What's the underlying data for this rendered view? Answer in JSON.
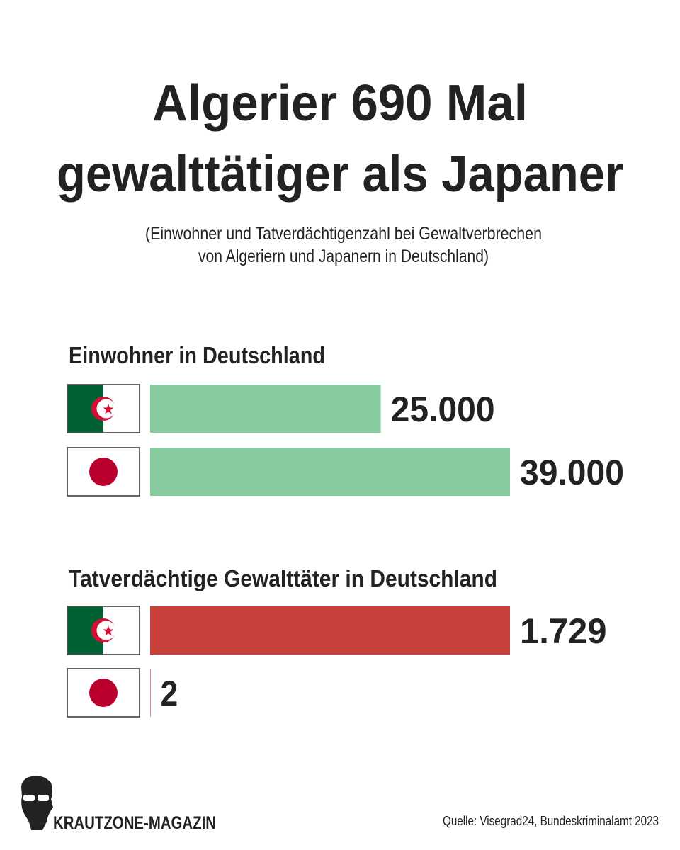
{
  "header": {
    "title": [
      "Algerier 690 Mal",
      "gewalttätiger als Japaner"
    ],
    "subtitle": [
      "(Einwohner und Tatverdächtigenzahl bei Gewaltverbrechen",
      "von Algeriern und Japanern in Deutschland)"
    ]
  },
  "chart_data": [
    {
      "type": "bar",
      "orientation": "horizontal",
      "title": "Einwohner in Deutschland",
      "values": [
        25000,
        39000
      ],
      "value_labels": [
        "25.000",
        "39.000"
      ],
      "color": "#88cba0"
    },
    {
      "type": "bar",
      "orientation": "horizontal",
      "title": "Tatverdächtige Gewalttäter in Deutschland",
      "values": [
        1729,
        2
      ],
      "value_labels": [
        "1.729",
        "2"
      ],
      "color": "#c9403a"
    }
  ],
  "footer": {
    "brand": "KRAUTZONE-MAGAZIN",
    "source": "Quelle: Visegrad24, Bundeskriminalamt 2023"
  }
}
